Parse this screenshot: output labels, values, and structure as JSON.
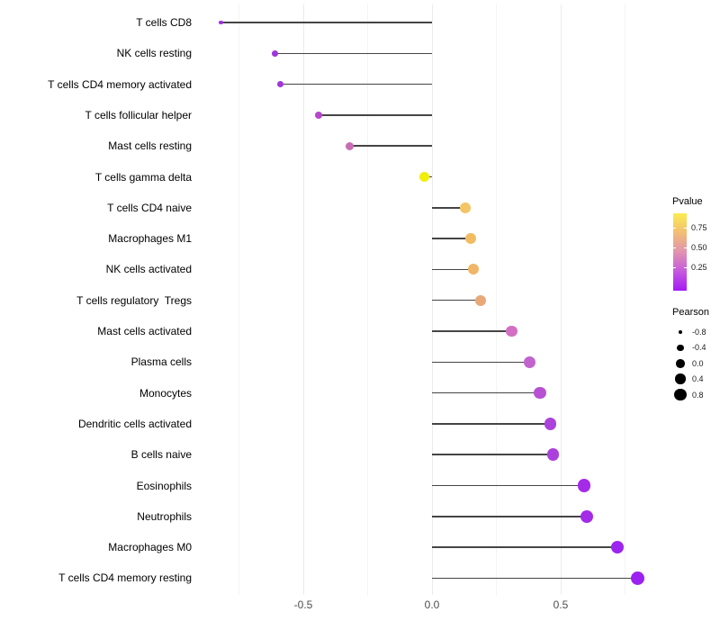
{
  "chart_data": {
    "type": "lollipop",
    "title": "",
    "xlabel": "",
    "ylabel": "",
    "x_ticks": [
      -0.5,
      0.0,
      0.5
    ],
    "x_tick_labels": [
      "-0.5",
      "0.0",
      "0.5"
    ],
    "x_minor_ticks": [
      -0.75,
      -0.25,
      0.25,
      0.75
    ],
    "xlim": [
      -0.9,
      0.85
    ],
    "grid": "vertical major+minor, light gray on white",
    "legend_position": "right",
    "stem_color": "#454545",
    "grid_major_color": "#EBEBEB",
    "grid_minor_color": "#F3F3F3",
    "points": [
      {
        "label": "T cells CD8",
        "pearson": -0.82,
        "color": "#A133DC"
      },
      {
        "label": "NK cells resting",
        "pearson": -0.61,
        "color": "#9F35DC"
      },
      {
        "label": "T cells CD4 memory activated",
        "pearson": -0.59,
        "color": "#A236DA"
      },
      {
        "label": "T cells follicular helper",
        "pearson": -0.44,
        "color": "#B546CC"
      },
      {
        "label": "Mast cells resting",
        "pearson": -0.32,
        "color": "#C76DB4"
      },
      {
        "label": "T cells gamma delta",
        "pearson": -0.03,
        "color": "#F2EE0C"
      },
      {
        "label": "T cells CD4 naive",
        "pearson": 0.13,
        "color": "#F3C566"
      },
      {
        "label": "Macrophages M1",
        "pearson": 0.15,
        "color": "#F2BC63"
      },
      {
        "label": "NK cells activated",
        "pearson": 0.16,
        "color": "#F0B566"
      },
      {
        "label": "T cells regulatory  Tregs",
        "pearson": 0.19,
        "color": "#E9A878"
      },
      {
        "label": "Mast cells activated",
        "pearson": 0.31,
        "color": "#D26FC2"
      },
      {
        "label": "Plasma cells",
        "pearson": 0.38,
        "color": "#C264CE"
      },
      {
        "label": "Monocytes",
        "pearson": 0.42,
        "color": "#B751D2"
      },
      {
        "label": "Dendritic cells activated",
        "pearson": 0.46,
        "color": "#AC42DC"
      },
      {
        "label": "B cells naive",
        "pearson": 0.47,
        "color": "#AC40DC"
      },
      {
        "label": "Eosinophils",
        "pearson": 0.59,
        "color": "#A42BE8"
      },
      {
        "label": "Neutrophils",
        "pearson": 0.6,
        "color": "#A42BE8"
      },
      {
        "label": "Macrophages M0",
        "pearson": 0.72,
        "color": "#9D24EE"
      },
      {
        "label": "T cells CD4 memory resting",
        "pearson": 0.8,
        "color": "#9B21F0"
      }
    ],
    "color_legend": {
      "title": "Pvalue",
      "tick_labels": [
        "0.75",
        "0.50",
        "0.25"
      ],
      "gradient_top_to_bottom": [
        "#FBEC50",
        "#F2BE74",
        "#E193B0",
        "#C55ADF",
        "#A519F5"
      ]
    },
    "size_legend": {
      "title": "Pearson",
      "dot_color": "#000000",
      "entries": [
        {
          "label": "-0.8",
          "value": -0.8
        },
        {
          "label": "-0.4",
          "value": -0.4
        },
        {
          "label": "0.0",
          "value": 0.0
        },
        {
          "label": "0.4",
          "value": 0.4
        },
        {
          "label": "0.8",
          "value": 0.8
        }
      ]
    }
  }
}
